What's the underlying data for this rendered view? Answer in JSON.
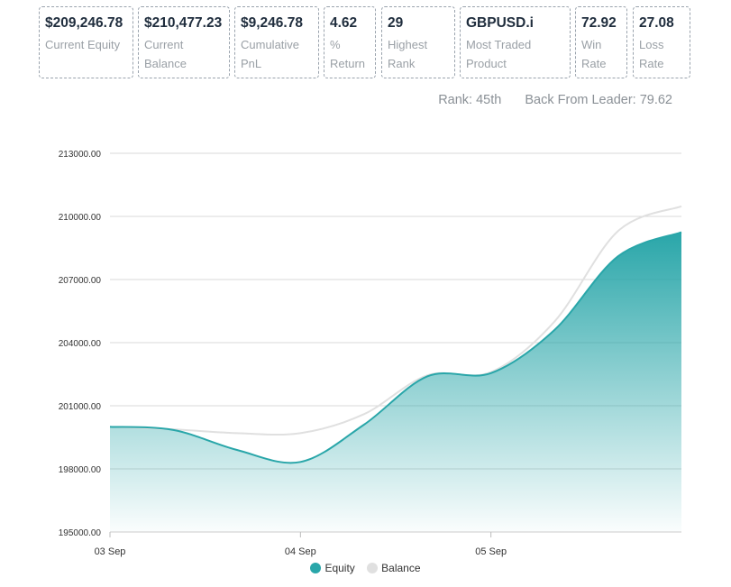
{
  "stats": [
    {
      "value": "$209,246.78",
      "label": "Current Equity"
    },
    {
      "value": "$210,477.23",
      "label": "Current Balance"
    },
    {
      "value": "$9,246.78",
      "label": "Cumulative PnL"
    },
    {
      "value": "4.62",
      "label": "% Return"
    },
    {
      "value": "29",
      "label": "Highest Rank"
    },
    {
      "value": "GBPUSD.i",
      "label": "Most Traded Product"
    },
    {
      "value": "72.92",
      "label": "Win Rate"
    },
    {
      "value": "27.08",
      "label": "Loss Rate"
    }
  ],
  "rank": {
    "text": "Rank: 45th",
    "back_from_leader": "Back From Leader: 79.62"
  },
  "legend": {
    "equity": "Equity",
    "balance": "Balance"
  },
  "colors": {
    "equity": "#29a6a9",
    "balance": "#e0e0e0",
    "grid": "#d8d8d8"
  },
  "chart_data": {
    "type": "area",
    "x": [
      "03 Sep",
      "",
      "",
      "04 Sep",
      "",
      "",
      "05 Sep",
      "",
      "",
      ""
    ],
    "x_tick_labels": [
      "03 Sep",
      "04 Sep",
      "05 Sep"
    ],
    "y_ticks": [
      "195000.00",
      "198000.00",
      "201000.00",
      "204000.00",
      "207000.00",
      "210000.00",
      "213000.00"
    ],
    "ylim": [
      195000,
      213000
    ],
    "grid": true,
    "legend_position": "bottom",
    "series": [
      {
        "name": "Equity",
        "values": [
          200000,
          199850,
          198900,
          198330,
          200100,
          202400,
          202550,
          204600,
          208100,
          209250
        ]
      },
      {
        "name": "Balance",
        "values": [
          200000,
          199880,
          199700,
          199700,
          200600,
          202450,
          202600,
          205000,
          209300,
          210480
        ]
      }
    ]
  }
}
